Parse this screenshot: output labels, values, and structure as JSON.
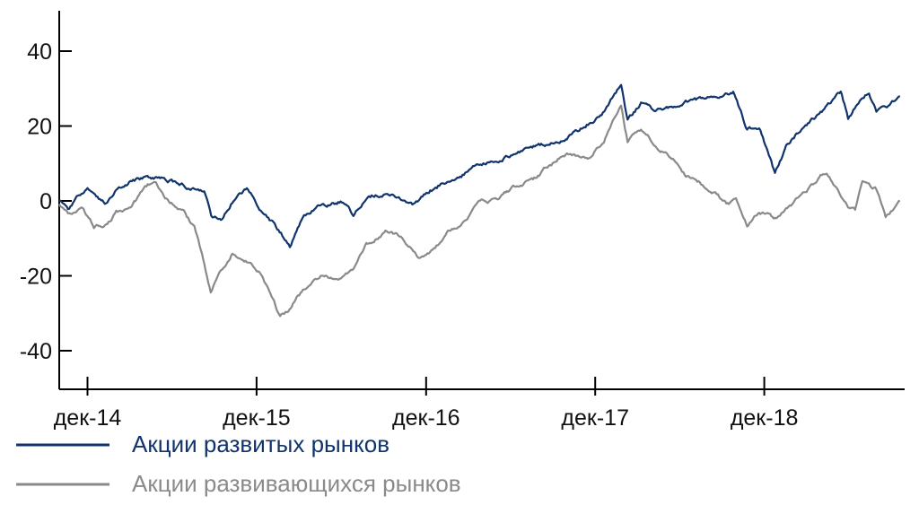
{
  "chart_data": {
    "type": "line",
    "ylim": [
      -50,
      50
    ],
    "yticks": [
      40,
      20,
      0,
      -20,
      -40
    ],
    "ytick_labels": [
      "40",
      "20",
      "0",
      "-20",
      "-40"
    ],
    "x_start": "2014-10",
    "x_end": "2019-09",
    "xticks": [
      "2014-12",
      "2015-12",
      "2016-12",
      "2017-12",
      "2018-12"
    ],
    "xtick_labels": [
      "дек-14",
      "дек-15",
      "дек-16",
      "дек-17",
      "дек-18"
    ],
    "grid": false,
    "legend_position": "bottom-left",
    "series": [
      {
        "name": "Акции развитых рынков",
        "color": "#10346b",
        "points": [
          [
            "2014-10-01",
            0
          ],
          [
            "2014-10-20",
            -3
          ],
          [
            "2014-11-10",
            1
          ],
          [
            "2014-12-01",
            3
          ],
          [
            "2014-12-20",
            0
          ],
          [
            "2015-01-10",
            -1
          ],
          [
            "2015-02-01",
            3
          ],
          [
            "2015-03-01",
            5
          ],
          [
            "2015-04-01",
            6
          ],
          [
            "2015-05-15",
            6
          ],
          [
            "2015-07-01",
            4
          ],
          [
            "2015-08-10",
            3
          ],
          [
            "2015-08-25",
            -4
          ],
          [
            "2015-09-15",
            -5
          ],
          [
            "2015-10-15",
            1
          ],
          [
            "2015-11-10",
            3
          ],
          [
            "2015-12-10",
            -2
          ],
          [
            "2016-01-20",
            -8
          ],
          [
            "2016-02-11",
            -12
          ],
          [
            "2016-03-10",
            -4
          ],
          [
            "2016-04-20",
            -1
          ],
          [
            "2016-06-05",
            0
          ],
          [
            "2016-06-27",
            -4
          ],
          [
            "2016-07-25",
            1
          ],
          [
            "2016-08-25",
            2
          ],
          [
            "2016-09-25",
            1
          ],
          [
            "2016-11-04",
            -1
          ],
          [
            "2016-12-10",
            3
          ],
          [
            "2017-01-10",
            5
          ],
          [
            "2017-02-15",
            7
          ],
          [
            "2017-03-15",
            9
          ],
          [
            "2017-05-01",
            11
          ],
          [
            "2017-06-15",
            13
          ],
          [
            "2017-08-01",
            15
          ],
          [
            "2017-09-15",
            16
          ],
          [
            "2017-10-25",
            19
          ],
          [
            "2017-12-15",
            23
          ],
          [
            "2018-01-26",
            31
          ],
          [
            "2018-02-09",
            22
          ],
          [
            "2018-03-10",
            26
          ],
          [
            "2018-04-10",
            24
          ],
          [
            "2018-05-15",
            25
          ],
          [
            "2018-07-01",
            27
          ],
          [
            "2018-08-20",
            28
          ],
          [
            "2018-09-25",
            29
          ],
          [
            "2018-10-25",
            19
          ],
          [
            "2018-11-20",
            20
          ],
          [
            "2018-12-24",
            7
          ],
          [
            "2019-01-20",
            15
          ],
          [
            "2019-02-25",
            20
          ],
          [
            "2019-04-15",
            25
          ],
          [
            "2019-05-15",
            29
          ],
          [
            "2019-05-31",
            22
          ],
          [
            "2019-06-20",
            26
          ],
          [
            "2019-07-15",
            29
          ],
          [
            "2019-07-31",
            24
          ],
          [
            "2019-08-20",
            25
          ],
          [
            "2019-09-20",
            28
          ]
        ]
      },
      {
        "name": "Акции развивающихся рынков",
        "color": "#8a8a8a",
        "points": [
          [
            "2014-10-01",
            -1
          ],
          [
            "2014-10-20",
            -3
          ],
          [
            "2014-11-20",
            -2
          ],
          [
            "2014-12-15",
            -7
          ],
          [
            "2015-01-10",
            -6
          ],
          [
            "2015-02-01",
            -3
          ],
          [
            "2015-03-01",
            -2
          ],
          [
            "2015-04-10",
            4
          ],
          [
            "2015-04-28",
            5
          ],
          [
            "2015-05-20",
            1
          ],
          [
            "2015-06-25",
            -3
          ],
          [
            "2015-07-20",
            -7
          ],
          [
            "2015-08-24",
            -24
          ],
          [
            "2015-09-10",
            -20
          ],
          [
            "2015-10-10",
            -14
          ],
          [
            "2015-11-10",
            -16
          ],
          [
            "2015-12-15",
            -20
          ],
          [
            "2016-01-21",
            -31
          ],
          [
            "2016-02-10",
            -29
          ],
          [
            "2016-03-10",
            -24
          ],
          [
            "2016-04-20",
            -20
          ],
          [
            "2016-05-20",
            -21
          ],
          [
            "2016-06-27",
            -19
          ],
          [
            "2016-07-25",
            -12
          ],
          [
            "2016-09-07",
            -8
          ],
          [
            "2016-10-10",
            -10
          ],
          [
            "2016-11-14",
            -15
          ],
          [
            "2016-12-15",
            -13
          ],
          [
            "2017-01-20",
            -8
          ],
          [
            "2017-02-25",
            -5
          ],
          [
            "2017-03-25",
            -1
          ],
          [
            "2017-05-05",
            1
          ],
          [
            "2017-06-15",
            4
          ],
          [
            "2017-07-25",
            6
          ],
          [
            "2017-08-20",
            9
          ],
          [
            "2017-10-01",
            13
          ],
          [
            "2017-11-15",
            11
          ],
          [
            "2017-12-20",
            16
          ],
          [
            "2018-01-26",
            26
          ],
          [
            "2018-02-09",
            16
          ],
          [
            "2018-03-10",
            19
          ],
          [
            "2018-04-10",
            15
          ],
          [
            "2018-05-15",
            12
          ],
          [
            "2018-06-15",
            7
          ],
          [
            "2018-07-15",
            5
          ],
          [
            "2018-08-15",
            2
          ],
          [
            "2018-09-10",
            -1
          ],
          [
            "2018-10-01",
            0
          ],
          [
            "2018-10-25",
            -7
          ],
          [
            "2018-11-20",
            -3
          ],
          [
            "2018-12-24",
            -5
          ],
          [
            "2019-01-25",
            -1
          ],
          [
            "2019-02-25",
            2
          ],
          [
            "2019-04-15",
            8
          ],
          [
            "2019-05-31",
            -1
          ],
          [
            "2019-06-15",
            -2
          ],
          [
            "2019-07-01",
            5
          ],
          [
            "2019-07-31",
            3
          ],
          [
            "2019-08-20",
            -4
          ],
          [
            "2019-09-20",
            0
          ]
        ]
      }
    ]
  }
}
